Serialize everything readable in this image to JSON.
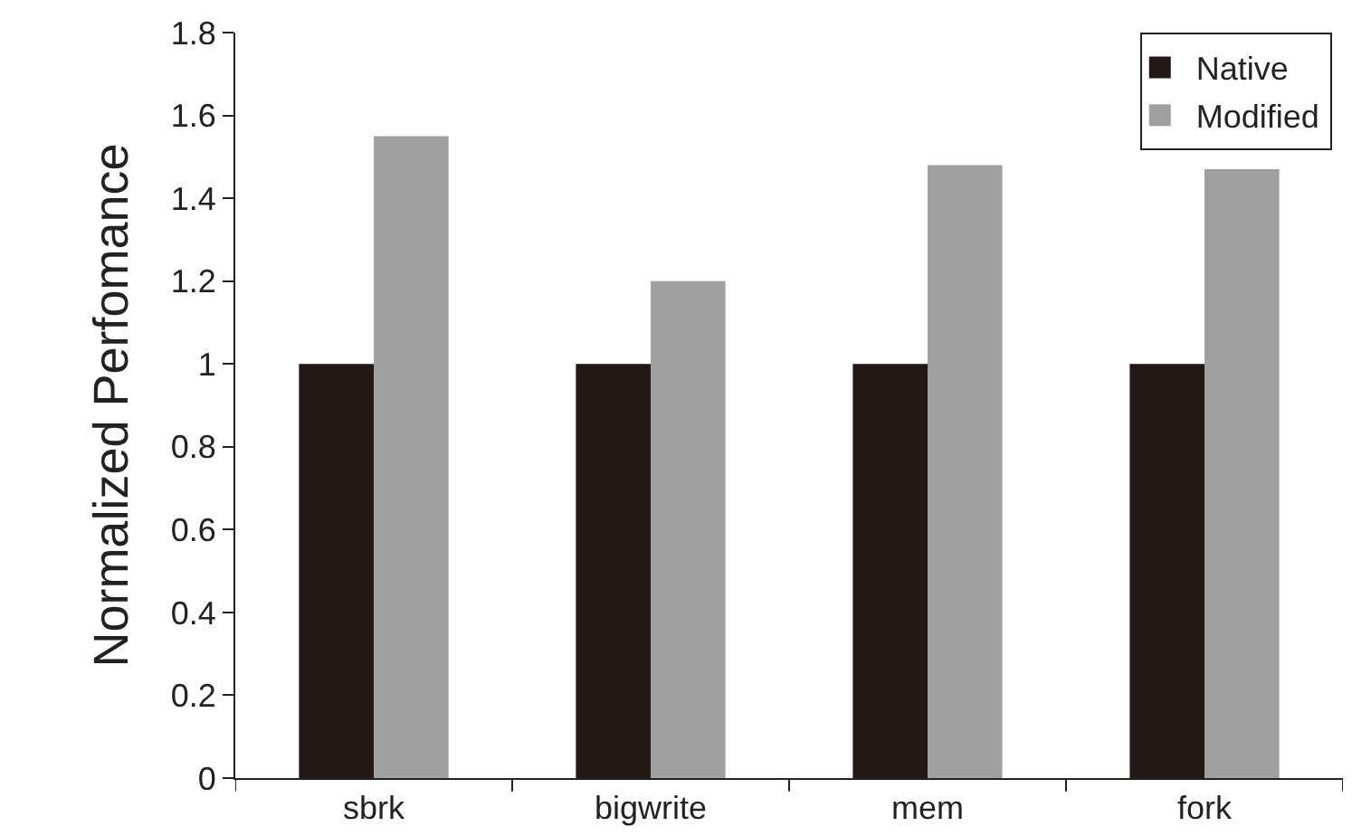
{
  "chart_data": {
    "type": "bar",
    "ylabel": "Normalized Perfomance",
    "categories": [
      "sbrk",
      "bigwrite",
      "mem",
      "fork"
    ],
    "series": [
      {
        "name": "Native",
        "color": "#231815",
        "values": [
          1,
          1,
          1,
          1
        ]
      },
      {
        "name": "Modified",
        "color": "#a0a0a0",
        "values": [
          1.55,
          1.2,
          1.48,
          1.47
        ]
      }
    ],
    "ylim": [
      0,
      1.8
    ],
    "yticks": [
      0,
      0.2,
      0.4,
      0.6,
      0.8,
      1,
      1.2,
      1.4,
      1.6,
      1.8
    ],
    "legend": "top right"
  }
}
